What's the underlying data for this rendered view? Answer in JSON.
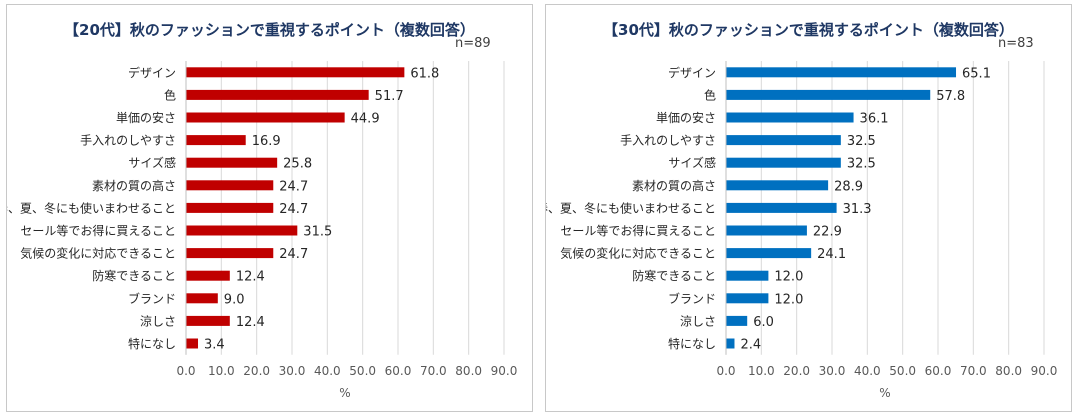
{
  "chart_data": [
    {
      "type": "bar",
      "orientation": "horizontal",
      "title": "【20代】秋のファッションで重視するポイント（複数回答）",
      "sample_size": "n=89",
      "categories": [
        "デザイン",
        "色",
        "単価の安さ",
        "手入れのしやすさ",
        "サイズ感",
        "素材の質の高さ",
        "春、夏、冬にも使いまわせること",
        "セール等でお得に買えること",
        "気候の変化に対応できること",
        "防寒できること",
        "ブランド",
        "涼しさ",
        "特になし"
      ],
      "values": [
        61.8,
        51.7,
        44.9,
        16.9,
        25.8,
        24.7,
        24.7,
        31.5,
        24.7,
        12.4,
        9.0,
        12.4,
        3.4
      ],
      "value_labels": [
        "61.8",
        "51.7",
        "44.9",
        "16.9",
        "25.8",
        "24.7",
        "24.7",
        "31.5",
        "24.7",
        "12.4",
        "9.0",
        "12.4",
        "3.4"
      ],
      "xlabel": "%",
      "xlim": [
        0,
        90
      ],
      "xticks": [
        "0.0",
        "10.0",
        "20.0",
        "30.0",
        "40.0",
        "50.0",
        "60.0",
        "70.0",
        "80.0",
        "90.0"
      ],
      "bar_color": "#c00000",
      "grid": true
    },
    {
      "type": "bar",
      "orientation": "horizontal",
      "title": "【30代】秋のファッションで重視するポイント（複数回答）",
      "sample_size": "n=83",
      "categories": [
        "デザイン",
        "色",
        "単価の安さ",
        "手入れのしやすさ",
        "サイズ感",
        "素材の質の高さ",
        "春、夏、冬にも使いまわせること",
        "セール等でお得に買えること",
        "気候の変化に対応できること",
        "防寒できること",
        "ブランド",
        "涼しさ",
        "特になし"
      ],
      "values": [
        65.1,
        57.8,
        36.1,
        32.5,
        32.5,
        28.9,
        31.3,
        22.9,
        24.1,
        12.0,
        12.0,
        6.0,
        2.4
      ],
      "value_labels": [
        "65.1",
        "57.8",
        "36.1",
        "32.5",
        "32.5",
        "28.9",
        "31.3",
        "22.9",
        "24.1",
        "12.0",
        "12.0",
        "6.0",
        "2.4"
      ],
      "xlabel": "%",
      "xlim": [
        0,
        90
      ],
      "xticks": [
        "0.0",
        "10.0",
        "20.0",
        "30.0",
        "40.0",
        "50.0",
        "60.0",
        "70.0",
        "80.0",
        "90.0"
      ],
      "bar_color": "#0070c0",
      "grid": true
    }
  ]
}
